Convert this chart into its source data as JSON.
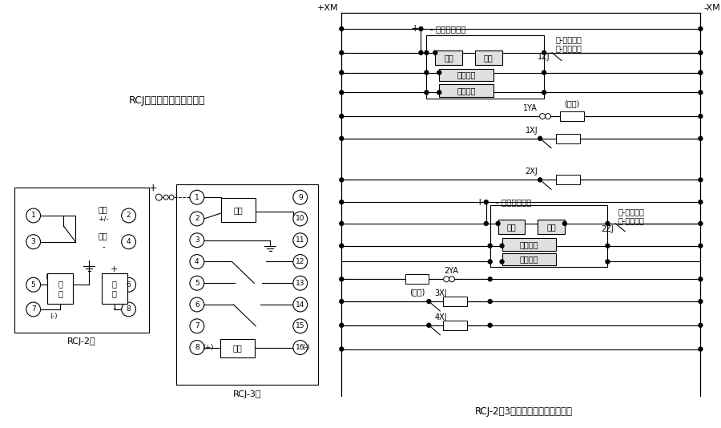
{
  "title_left": "RCJ系列冲击继电器接线图",
  "title_right": "RCJ-2、3型冲击继电器应用参考图",
  "label_rcj2": "RCJ-2型",
  "label_rcj3": "RCJ-3型",
  "bg_color": "#ffffff",
  "line_color": "#000000",
  "box_fill": "#e8e8e8",
  "box_edge": "#000000"
}
